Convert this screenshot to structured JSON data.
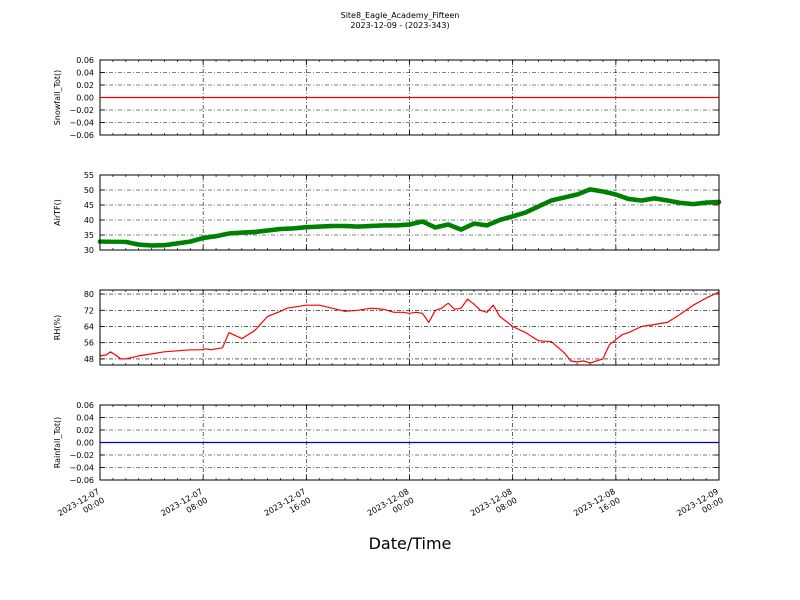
{
  "figure": {
    "title_line1": "Site8_Eagle_Academy_Fifteen",
    "title_line2": "2023-12-09 - (2023-343)",
    "xlabel": "Date/Time"
  },
  "chart_data": [
    {
      "type": "line",
      "ylabel": "Snowfall_Tot()",
      "ylim": [
        -0.06,
        0.06
      ],
      "yticks": [
        -0.06,
        -0.04,
        -0.02,
        0.0,
        0.02,
        0.04,
        0.06
      ],
      "ytick_labels": [
        "−0.06",
        "−0.04",
        "−0.02",
        "0.00",
        "0.02",
        "0.04",
        "0.06"
      ],
      "grid": true,
      "show_xticklabels": false,
      "series": [
        {
          "color": "#ff0000",
          "marker": false,
          "x": [
            0,
            48
          ],
          "values": [
            0,
            0
          ]
        }
      ]
    },
    {
      "type": "line",
      "ylabel": "AirTF()",
      "ylim": [
        30,
        55
      ],
      "yticks": [
        30,
        35,
        40,
        45,
        50,
        55
      ],
      "ytick_labels": [
        "30",
        "35",
        "40",
        "45",
        "50",
        "55"
      ],
      "grid": true,
      "show_xticklabels": false,
      "series": [
        {
          "color": "#008000",
          "marker": true,
          "x": [
            0,
            2,
            3,
            4,
            5,
            6,
            7,
            8,
            9,
            10,
            11,
            12,
            13,
            14,
            15,
            16,
            17,
            18,
            19,
            20,
            21,
            22,
            23,
            24,
            25,
            26,
            27,
            28,
            29,
            30,
            31,
            32,
            33,
            34,
            35,
            36,
            37,
            38,
            39,
            40,
            41,
            42,
            43,
            44,
            45,
            46,
            47,
            48
          ],
          "values": [
            32.8,
            32.7,
            31.8,
            31.5,
            31.6,
            32.2,
            32.8,
            34.0,
            34.6,
            35.5,
            35.8,
            36.0,
            36.5,
            37.0,
            37.2,
            37.6,
            37.8,
            38.0,
            38.0,
            37.8,
            38.0,
            38.2,
            38.2,
            38.5,
            39.5,
            37.5,
            38.5,
            36.8,
            38.8,
            38.2,
            40.0,
            41.2,
            42.5,
            44.5,
            46.5,
            47.5,
            48.5,
            50.2,
            49.5,
            48.5,
            47.0,
            46.5,
            47.2,
            46.5,
            45.7,
            45.3,
            45.8,
            46.0
          ]
        }
      ]
    },
    {
      "type": "line",
      "ylabel": "RH(%)",
      "ylim": [
        45,
        82
      ],
      "yticks": [
        48,
        56,
        64,
        72,
        80
      ],
      "ytick_labels": [
        "48",
        "56",
        "64",
        "72",
        "80"
      ],
      "grid": true,
      "show_xticklabels": false,
      "series": [
        {
          "color": "#ff0000",
          "marker": false,
          "x": [
            0,
            0.5,
            0.8,
            1.2,
            1.6,
            2,
            3,
            4,
            5,
            6,
            7,
            7.5,
            7.8,
            8.2,
            8.6,
            9,
            9.5,
            10,
            11,
            12,
            13,
            14,
            14.5,
            15,
            16,
            17,
            18,
            19,
            20,
            21,
            22,
            22.8,
            23.5,
            24,
            24.5,
            25,
            25.5,
            26,
            26.5,
            27,
            27.5,
            28,
            28.5,
            29,
            29.5,
            30,
            30.5,
            31,
            32,
            33,
            34,
            35,
            36,
            36.5,
            37,
            37.5,
            38,
            38.5,
            39,
            39.5,
            40,
            40.5,
            41,
            42,
            43,
            44,
            45,
            46,
            47,
            48
          ],
          "values": [
            49.5,
            50,
            51.5,
            50,
            48,
            48,
            49.5,
            50.5,
            51.5,
            52,
            52.5,
            52.5,
            52.5,
            53,
            52.5,
            53,
            53.5,
            61,
            58,
            62,
            69,
            71.5,
            73,
            73.5,
            74.5,
            74.5,
            73,
            71.5,
            72,
            73,
            72.5,
            71,
            71,
            70.5,
            71,
            70.5,
            66,
            72,
            73,
            75.5,
            72.5,
            73,
            77.5,
            75,
            72,
            71,
            74.5,
            69,
            64,
            61,
            57,
            56.5,
            51,
            47,
            46.5,
            47,
            46,
            47,
            48,
            55,
            57.5,
            60,
            61,
            64,
            65,
            66,
            70,
            74.5,
            78,
            81
          ]
        }
      ]
    },
    {
      "type": "line",
      "ylabel": "Rainfall_Tot()",
      "ylim": [
        -0.06,
        0.06
      ],
      "yticks": [
        -0.06,
        -0.04,
        -0.02,
        0.0,
        0.02,
        0.04,
        0.06
      ],
      "ytick_labels": [
        "−0.06",
        "−0.04",
        "−0.02",
        "0.00",
        "0.02",
        "0.04",
        "0.06"
      ],
      "grid": true,
      "show_xticklabels": true,
      "series": [
        {
          "color": "#0000cc",
          "marker": false,
          "x": [
            0,
            48
          ],
          "values": [
            0,
            0
          ]
        }
      ]
    }
  ],
  "x_axis": {
    "xlim": [
      0,
      48
    ],
    "ticks": [
      0,
      8,
      16,
      24,
      32,
      40,
      48
    ],
    "tick_labels": [
      [
        "2023-12-07",
        "00:00"
      ],
      [
        "2023-12-07",
        "08:00"
      ],
      [
        "2023-12-07",
        "16:00"
      ],
      [
        "2023-12-08",
        "00:00"
      ],
      [
        "2023-12-08",
        "08:00"
      ],
      [
        "2023-12-08",
        "16:00"
      ],
      [
        "2023-12-09",
        "00:00"
      ]
    ]
  }
}
